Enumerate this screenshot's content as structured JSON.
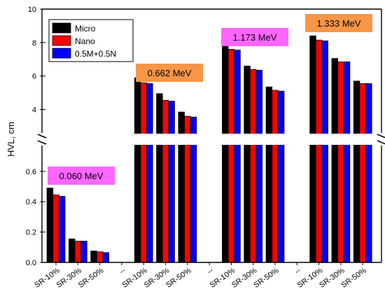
{
  "chart_data": {
    "type": "bar",
    "ylabel": "HVL, cm",
    "xlabel": "",
    "axis_break": true,
    "upper_panel": {
      "ylim": [
        2.6,
        10
      ],
      "ticks": [
        "4",
        "6",
        "8",
        "10"
      ]
    },
    "lower_panel": {
      "ylim": [
        0,
        0.77
      ],
      "ticks": [
        "0.0",
        "0.2",
        "0.4",
        "0.6"
      ]
    },
    "categories": [
      "SR-10%",
      "SR-30%",
      "SR-50%",
      "--",
      "SR-10%",
      "SR-30%",
      "SR-50%",
      "--",
      "SR-10%",
      "SR-30%",
      "SR-50%",
      "--",
      "SR-10%",
      "SR-30%",
      "SR-50%"
    ],
    "series": [
      {
        "name": "Micro",
        "color": "#000000",
        "values": [
          0.49,
          0.155,
          0.075,
          null,
          5.9,
          4.95,
          3.85,
          null,
          7.85,
          6.6,
          5.35,
          null,
          8.4,
          7.05,
          5.7
        ]
      },
      {
        "name": "Nano",
        "color": "#ff0000",
        "values": [
          0.445,
          0.14,
          0.07,
          null,
          5.6,
          4.55,
          3.6,
          null,
          7.6,
          6.4,
          5.15,
          null,
          8.15,
          6.85,
          5.55
        ]
      },
      {
        "name": "0.5M+0.5N",
        "color": "#0000ff",
        "values": [
          0.435,
          0.14,
          0.065,
          null,
          5.55,
          4.5,
          3.55,
          null,
          7.55,
          6.35,
          5.1,
          null,
          8.1,
          6.85,
          5.55
        ]
      }
    ],
    "energy_labels": [
      {
        "text": "0.060 MeV",
        "color": "#ff66ff"
      },
      {
        "text": "0.662 MeV",
        "color": "#f79646"
      },
      {
        "text": "1.173 MeV",
        "color": "#ff66ff"
      },
      {
        "text": "1.333 MeV",
        "color": "#f79646"
      }
    ],
    "legend": {
      "placement": "top-left"
    },
    "grid": false
  }
}
